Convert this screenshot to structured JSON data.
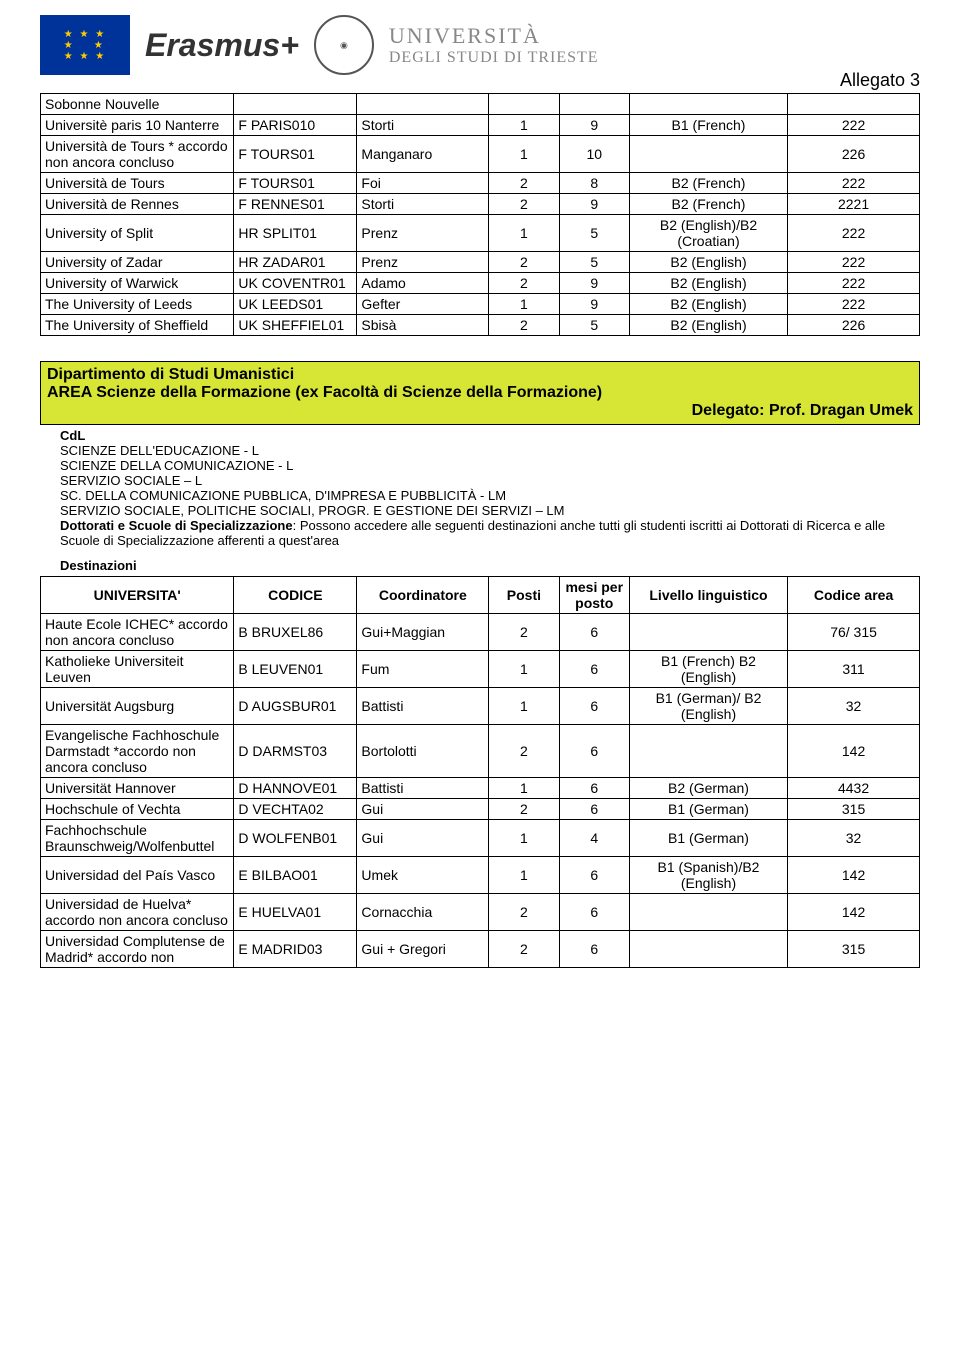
{
  "header": {
    "erasmus": "Erasmus+",
    "uni_top": "UNIVERSITÀ",
    "uni_bottom": "DEGLI STUDI DI TRIESTE",
    "allegato": "Allegato 3"
  },
  "table1": {
    "rows": [
      {
        "uni": "Sobonne Nouvelle",
        "code": "",
        "coord": "",
        "posti": "",
        "mesi": "",
        "lvl": "",
        "area": ""
      },
      {
        "uni": "Universitè paris 10 Nanterre",
        "code": "F PARIS010",
        "coord": "Storti",
        "posti": "1",
        "mesi": "9",
        "lvl": "B1 (French)",
        "area": "222"
      },
      {
        "uni": "Università de Tours * accordo non ancora concluso",
        "code": "F TOURS01",
        "coord": "Manganaro",
        "posti": "1",
        "mesi": "10",
        "lvl": "",
        "area": "226"
      },
      {
        "uni": "Università de Tours",
        "code": "F TOURS01",
        "coord": "Foi",
        "posti": "2",
        "mesi": "8",
        "lvl": "B2 (French)",
        "area": "222"
      },
      {
        "uni": "Università de Rennes",
        "code": "F RENNES01",
        "coord": "Storti",
        "posti": "2",
        "mesi": "9",
        "lvl": "B2 (French)",
        "area": "2221"
      },
      {
        "uni": "University of Split",
        "code": "HR SPLIT01",
        "coord": "Prenz",
        "posti": "1",
        "mesi": "5",
        "lvl": "B2 (English)/B2 (Croatian)",
        "area": "222"
      },
      {
        "uni": "University of Zadar",
        "code": "HR ZADAR01",
        "coord": "Prenz",
        "posti": "2",
        "mesi": "5",
        "lvl": "B2 (English)",
        "area": "222"
      },
      {
        "uni": "University of Warwick",
        "code": "UK COVENTR01",
        "coord": "Adamo",
        "posti": "2",
        "mesi": "9",
        "lvl": "B2 (English)",
        "area": "222"
      },
      {
        "uni": "The University of Leeds",
        "code": "UK LEEDS01",
        "coord": "Gefter",
        "posti": "1",
        "mesi": "9",
        "lvl": "B2 (English)",
        "area": "222"
      },
      {
        "uni": "The University of Sheffield",
        "code": "UK SHEFFIEL01",
        "coord": "Sbisà",
        "posti": "2",
        "mesi": "5",
        "lvl": "B2 (English)",
        "area": "226"
      }
    ]
  },
  "section": {
    "title1": "Dipartimento di Studi Umanistici",
    "title2": "AREA Scienze della Formazione (ex Facoltà di Scienze della Formazione)",
    "delegato": "Delegato: Prof. Dragan Umek"
  },
  "cdl": {
    "header": "CdL",
    "lines": [
      "SCIENZE DELL'EDUCAZIONE - L",
      "SCIENZE DELLA COMUNICAZIONE - L",
      "SERVIZIO SOCIALE – L",
      "SC. DELLA COMUNICAZIONE PUBBLICA, D'IMPRESA E PUBBLICITÀ - LM",
      "SERVIZIO SOCIALE, POLITICHE SOCIALI, PROGR. E GESTIONE DEI SERVIZI – LM"
    ],
    "dottorati": "Dottorati e Scuole di Specializzazione: Possono accedere alle seguenti destinazioni anche tutti gli studenti iscritti ai Dottorati di Ricerca e alle Scuole di Specializzazione afferenti a quest'area"
  },
  "destinazioni_label": "Destinazioni",
  "table2": {
    "headers": {
      "uni": "UNIVERSITA'",
      "code": "CODICE",
      "coord": "Coordinatore",
      "posti": "Posti",
      "mesi": "mesi per posto",
      "lvl": "Livello linguistico",
      "area": "Codice area"
    },
    "rows": [
      {
        "uni": "Haute Ecole ICHEC* accordo non ancora concluso",
        "code": "B BRUXEL86",
        "coord": "Gui+Maggian",
        "posti": "2",
        "mesi": "6",
        "lvl": "",
        "area": "76/ 315"
      },
      {
        "uni": "Katholieke Universiteit Leuven",
        "code": "B LEUVEN01",
        "coord": "Fum",
        "posti": "1",
        "mesi": "6",
        "lvl": "B1 (French) B2 (English)",
        "area": "311"
      },
      {
        "uni": "Universität Augsburg",
        "code": "D AUGSBUR01",
        "coord": "Battisti",
        "posti": "1",
        "mesi": "6",
        "lvl": "B1 (German)/ B2 (English)",
        "area": "32"
      },
      {
        "uni": "Evangelische Fachhoschule Darmstadt *accordo non ancora concluso",
        "code": "D DARMST03",
        "coord": "Bortolotti",
        "posti": "2",
        "mesi": "6",
        "lvl": "",
        "area": "142"
      },
      {
        "uni": "Universität Hannover",
        "code": "D HANNOVE01",
        "coord": "Battisti",
        "posti": "1",
        "mesi": "6",
        "lvl": "B2 (German)",
        "area": "4432"
      },
      {
        "uni": "Hochschule of Vechta",
        "code": "D VECHTA02",
        "coord": "Gui",
        "posti": "2",
        "mesi": "6",
        "lvl": "B1 (German)",
        "area": "315"
      },
      {
        "uni": "Fachhochschule Braunschweig/Wolfenbuttel",
        "code": "D WOLFENB01",
        "coord": "Gui",
        "posti": "1",
        "mesi": "4",
        "lvl": "B1 (German)",
        "area": "32"
      },
      {
        "uni": "Universidad del País Vasco",
        "code": "E BILBAO01",
        "coord": "Umek",
        "posti": "1",
        "mesi": "6",
        "lvl": "B1 (Spanish)/B2 (English)",
        "area": "142"
      },
      {
        "uni": "Universidad de Huelva* accordo non ancora concluso",
        "code": "E HUELVA01",
        "coord": "Cornacchia",
        "posti": "2",
        "mesi": "6",
        "lvl": "",
        "area": "142"
      },
      {
        "uni": "Universidad Complutense de Madrid* accordo non",
        "code": "E MADRID03",
        "coord": "Gui + Gregori",
        "posti": "2",
        "mesi": "6",
        "lvl": "",
        "area": "315"
      }
    ]
  }
}
